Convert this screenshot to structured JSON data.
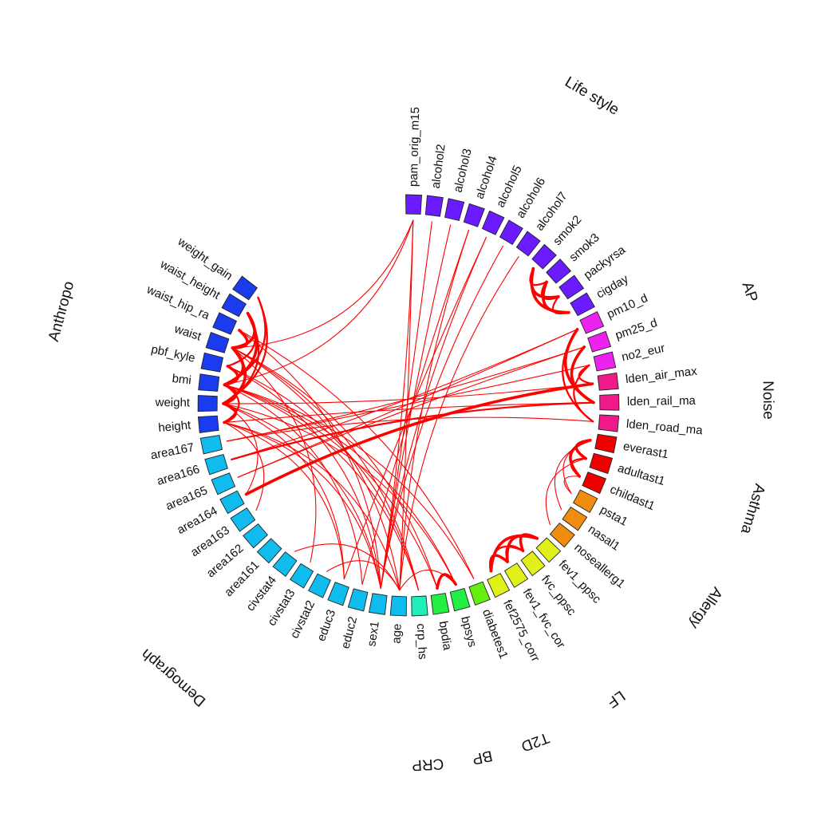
{
  "colors": {
    "link": "#ff0000",
    "groups": {
      "Life style": "#6a1bff",
      "AP": "#ee22ee",
      "Noise": "#ee1a8a",
      "Asthma": "#ee0000",
      "Allergy": "#f08c10",
      "LF": "#e2f01a",
      "T2D": "#66ee10",
      "BP": "#22ee44",
      "CRP": "#22eebb",
      "Demograph": "#10bbee",
      "Anthropo": "#1a3bee"
    }
  },
  "groups": [
    {
      "name": "Life style",
      "variables": [
        "pam_orig_m15",
        "alcohol2",
        "alcohol3",
        "alcohol4",
        "alcohol5",
        "alcohol6",
        "alcohol7",
        "smok2",
        "smok3",
        "packyrsa",
        "cigday"
      ]
    },
    {
      "name": "AP",
      "variables": [
        "pm10_d",
        "pm25_d",
        "no2_eur"
      ]
    },
    {
      "name": "Noise",
      "variables": [
        "lden_air_max",
        "lden_rail_ma",
        "lden_road_ma"
      ]
    },
    {
      "name": "Asthma",
      "variables": [
        "everast1",
        "adultast1",
        "childast1"
      ]
    },
    {
      "name": "Allergy",
      "variables": [
        "psta1",
        "nasal1",
        "noseallerg1"
      ]
    },
    {
      "name": "LF",
      "variables": [
        "fev1_ppsc",
        "fvc_ppsc",
        "fev1_fvc_cor",
        "fef2575_corr"
      ]
    },
    {
      "name": "T2D",
      "variables": [
        "diabetes1"
      ]
    },
    {
      "name": "BP",
      "variables": [
        "bpsys",
        "bpdia"
      ]
    },
    {
      "name": "CRP",
      "variables": [
        "crp_hs"
      ]
    },
    {
      "name": "Demograph",
      "variables": [
        "age",
        "sex1",
        "educ2",
        "educ3",
        "civstat2",
        "civstat3",
        "civstat4",
        "area161",
        "area162",
        "area163",
        "area164",
        "area165",
        "area166",
        "area167"
      ]
    },
    {
      "name": "Anthropo",
      "variables": [
        "height",
        "weight",
        "bmi",
        "pbf_kyle",
        "waist",
        "waist_hip_ra",
        "waist_height",
        "weight_gain"
      ]
    }
  ],
  "links": [
    [
      "smok2",
      "cigday",
      3
    ],
    [
      "smok3",
      "cigday",
      3
    ],
    [
      "smok2",
      "packyrsa",
      3
    ],
    [
      "smok3",
      "packyrsa",
      3
    ],
    [
      "packyrsa",
      "cigday",
      2
    ],
    [
      "smok2",
      "smok3",
      2
    ],
    [
      "pm10_d",
      "lden_rail_ma",
      3
    ],
    [
      "pm10_d",
      "lden_road_ma",
      2
    ],
    [
      "pm25_d",
      "lden_rail_ma",
      3
    ],
    [
      "no2_eur",
      "lden_air_max",
      2
    ],
    [
      "no2_eur",
      "lden_road_ma",
      2
    ],
    [
      "pm10_d",
      "area165",
      1
    ],
    [
      "pm25_d",
      "area165",
      1
    ],
    [
      "pm10_d",
      "area166",
      1
    ],
    [
      "no2_eur",
      "area167",
      1
    ],
    [
      "pm25_d",
      "area167",
      1
    ],
    [
      "lden_air_max",
      "area164",
      3
    ],
    [
      "lden_rail_ma",
      "area166",
      2
    ],
    [
      "lden_road_ma",
      "area167",
      1
    ],
    [
      "lden_rail_ma",
      "height",
      1
    ],
    [
      "lden_air_max",
      "weight",
      1
    ],
    [
      "everast1",
      "adultast1",
      3
    ],
    [
      "everast1",
      "childast1",
      3
    ],
    [
      "adultast1",
      "childast1",
      2
    ],
    [
      "everast1",
      "psta1",
      1
    ],
    [
      "everast1",
      "nasal1",
      1
    ],
    [
      "adultast1",
      "noseallerg1",
      1
    ],
    [
      "childast1",
      "psta1",
      1
    ],
    [
      "fev1_ppsc",
      "fvc_ppsc",
      3
    ],
    [
      "fev1_ppsc",
      "fev1_fvc_cor",
      3
    ],
    [
      "fev1_ppsc",
      "fef2575_corr",
      3
    ],
    [
      "fvc_ppsc",
      "fev1_fvc_cor",
      2
    ],
    [
      "fvc_ppsc",
      "fef2575_corr",
      2
    ],
    [
      "fev1_fvc_cor",
      "fef2575_corr",
      3
    ],
    [
      "bpsys",
      "bpdia",
      3
    ],
    [
      "bpsys",
      "bmi",
      1
    ],
    [
      "bpdia",
      "waist",
      1
    ],
    [
      "bpsys",
      "weight",
      1
    ],
    [
      "bpdia",
      "bmi",
      1
    ],
    [
      "bpsys",
      "age",
      1
    ],
    [
      "diabetes1",
      "bmi",
      1
    ],
    [
      "diabetes1",
      "waist_hip_ra",
      1
    ],
    [
      "crp_hs",
      "bmi",
      1
    ],
    [
      "crp_hs",
      "waist",
      1
    ],
    [
      "crp_hs",
      "pbf_kyle",
      1
    ],
    [
      "height",
      "weight",
      3
    ],
    [
      "height",
      "bmi",
      2
    ],
    [
      "weight",
      "bmi",
      3
    ],
    [
      "weight",
      "waist",
      3
    ],
    [
      "bmi",
      "waist",
      3
    ],
    [
      "bmi",
      "pbf_kyle",
      3
    ],
    [
      "waist",
      "waist_height",
      3
    ],
    [
      "waist",
      "waist_hip_ra",
      3
    ],
    [
      "weight",
      "waist_height",
      2
    ],
    [
      "bmi",
      "waist_height",
      3
    ],
    [
      "pbf_kyle",
      "waist_height",
      2
    ],
    [
      "weight",
      "weight_gain",
      2
    ],
    [
      "bmi",
      "weight_gain",
      2
    ],
    [
      "height",
      "sex1",
      1
    ],
    [
      "weight",
      "sex1",
      1
    ],
    [
      "pbf_kyle",
      "sex1",
      1
    ],
    [
      "waist_hip_ra",
      "sex1",
      1
    ],
    [
      "height",
      "age",
      1
    ],
    [
      "waist",
      "age",
      1
    ],
    [
      "pam_orig_m15",
      "sex1",
      1
    ],
    [
      "pam_orig_m15",
      "bmi",
      1
    ],
    [
      "pam_orig_m15",
      "age",
      1
    ],
    [
      "pam_orig_m15",
      "waist",
      1
    ],
    [
      "alcohol2",
      "sex1",
      1
    ],
    [
      "alcohol3",
      "sex1",
      1
    ],
    [
      "alcohol4",
      "age",
      1
    ],
    [
      "alcohol5",
      "sex1",
      1
    ],
    [
      "alcohol6",
      "sex1",
      1
    ],
    [
      "alcohol7",
      "age",
      1
    ],
    [
      "alcohol4",
      "educ2",
      1
    ],
    [
      "alcohol5",
      "educ3",
      1
    ],
    [
      "weight",
      "educ3",
      1
    ],
    [
      "height",
      "educ3",
      1
    ],
    [
      "bmi",
      "educ2",
      1
    ],
    [
      "height",
      "area163",
      1
    ],
    [
      "weight",
      "area164",
      1
    ],
    [
      "age",
      "civstat2",
      1
    ],
    [
      "age",
      "civstat4",
      1
    ],
    [
      "waist",
      "civstat3",
      1
    ]
  ]
}
